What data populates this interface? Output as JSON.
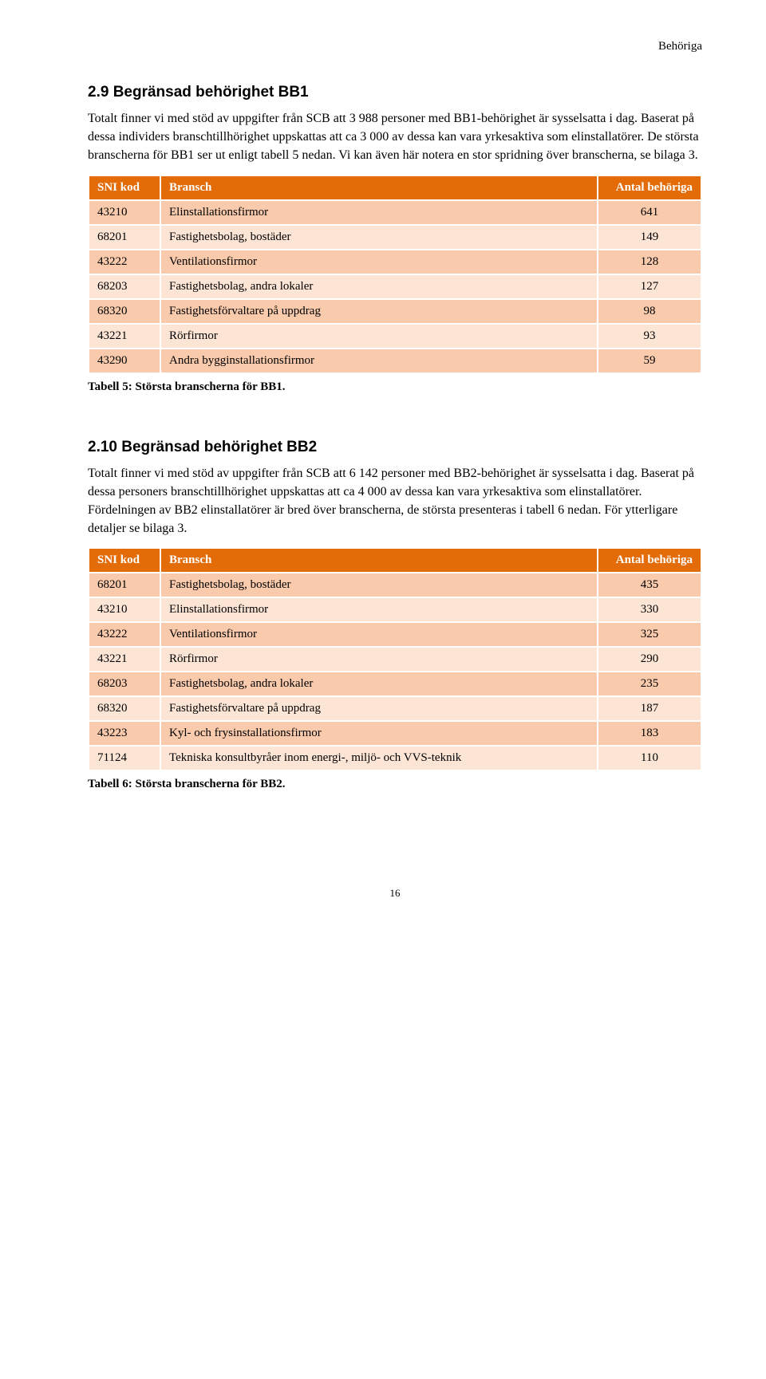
{
  "page": {
    "header_label": "Behöriga",
    "number": "16"
  },
  "section1": {
    "heading": "2.9   Begränsad behörighet BB1",
    "paragraph": "Totalt finner vi med stöd av uppgifter från SCB att 3 988 personer med BB1-behörighet är sysselsatta i dag. Baserat på dessa individers branschtillhörighet uppskattas att ca 3 000 av dessa kan vara yrkesaktiva som elinstallatörer. De största branscherna för BB1 ser ut enligt tabell 5 nedan. Vi kan även här notera en stor spridning över branscherna, se bilaga 3.",
    "table": {
      "caption": "Tabell 5: Största branscherna för BB1.",
      "columns": [
        "SNI kod",
        "Bransch",
        "Antal behöriga"
      ],
      "rows": [
        [
          "43210",
          "Elinstallationsfirmor",
          "641"
        ],
        [
          "68201",
          "Fastighetsbolag, bostäder",
          "149"
        ],
        [
          "43222",
          "Ventilationsfirmor",
          "128"
        ],
        [
          "68203",
          "Fastighetsbolag, andra lokaler",
          "127"
        ],
        [
          "68320",
          "Fastighetsförvaltare på uppdrag",
          "98"
        ],
        [
          "43221",
          "Rörfirmor",
          "93"
        ],
        [
          "43290",
          "Andra bygginstallationsfirmor",
          "59"
        ]
      ],
      "header_bg": "#e36c09",
      "header_fg": "#ffffff",
      "row_even_bg": "#f9caac",
      "row_odd_bg": "#fde5d6"
    }
  },
  "section2": {
    "heading": "2.10  Begränsad behörighet BB2",
    "paragraph": "Totalt finner vi med stöd av uppgifter från SCB att 6 142 personer med BB2-behörighet är sysselsatta i dag. Baserat på dessa personers branschtillhörighet uppskattas att ca 4 000 av dessa kan vara yrkesaktiva som elinstallatörer. Fördelningen av BB2 elinstallatörer är bred över branscherna, de största presenteras i tabell 6 nedan. För ytterligare detaljer se bilaga 3.",
    "table": {
      "caption": "Tabell 6: Största branscherna för BB2.",
      "columns": [
        "SNI kod",
        "Bransch",
        "Antal behöriga"
      ],
      "rows": [
        [
          "68201",
          "Fastighetsbolag, bostäder",
          "435"
        ],
        [
          "43210",
          "Elinstallationsfirmor",
          "330"
        ],
        [
          "43222",
          "Ventilationsfirmor",
          "325"
        ],
        [
          "43221",
          "Rörfirmor",
          "290"
        ],
        [
          "68203",
          "Fastighetsbolag, andra lokaler",
          "235"
        ],
        [
          "68320",
          "Fastighetsförvaltare på uppdrag",
          "187"
        ],
        [
          "43223",
          "Kyl- och frysinstallationsfirmor",
          "183"
        ],
        [
          "71124",
          "Tekniska konsultbyråer inom energi-, miljö- och VVS-teknik",
          "110"
        ]
      ],
      "header_bg": "#e36c09",
      "header_fg": "#ffffff",
      "row_even_bg": "#f9caac",
      "row_odd_bg": "#fde5d6"
    }
  }
}
